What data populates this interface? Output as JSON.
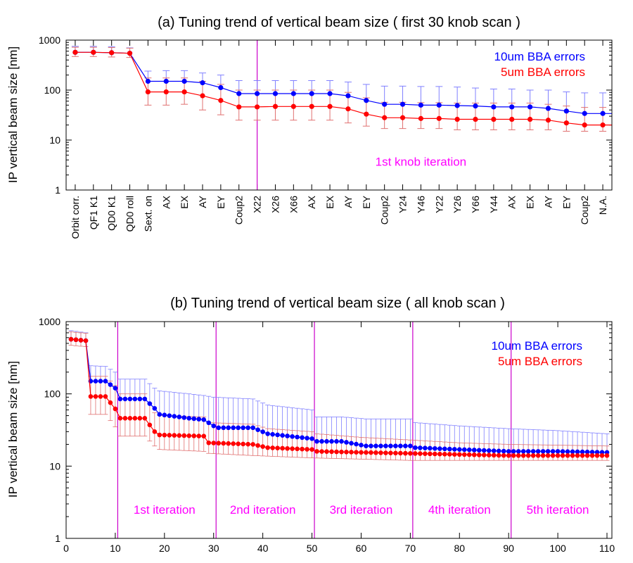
{
  "chart_data": [
    {
      "type": "line",
      "title": "(a) Tuning trend of vertical beam size ( first 30 knob scan )",
      "xlabel": "",
      "ylabel": "IP vertical beam size [nm]",
      "yscale": "log",
      "ylim": [
        1,
        1000
      ],
      "yticks": [
        "1",
        "10",
        "100",
        "1000"
      ],
      "categories": [
        "Orbit corr.",
        "QF1 K1",
        "QD0 K1",
        "QD0 roll",
        "Sext. on",
        "AX",
        "EX",
        "AY",
        "EY",
        "Coup2",
        "X22",
        "X26",
        "X66",
        "AX",
        "EX",
        "AY",
        "EY",
        "Coup2",
        "Y24",
        "Y46",
        "Y22",
        "Y26",
        "Y66",
        "Y44",
        "AX",
        "EX",
        "AY",
        "EY",
        "Coup2",
        "N.A."
      ],
      "series": [
        {
          "name": "10um BBA errors",
          "color": "#0000ff",
          "values": [
            570,
            570,
            560,
            545,
            150,
            150,
            150,
            140,
            112,
            85,
            85,
            85,
            85,
            85,
            85,
            77,
            62,
            52,
            52,
            50,
            50,
            49,
            48,
            46,
            46,
            46,
            43,
            38,
            34,
            34
          ],
          "err_high": [
            750,
            750,
            740,
            700,
            240,
            245,
            245,
            220,
            200,
            155,
            155,
            155,
            155,
            155,
            155,
            145,
            130,
            120,
            120,
            118,
            118,
            115,
            110,
            105,
            105,
            100,
            100,
            92,
            88,
            88
          ]
        },
        {
          "name": "5um BBA errors",
          "color": "#ff0000",
          "values": [
            570,
            570,
            560,
            545,
            92,
            92,
            92,
            77,
            62,
            46,
            46,
            47,
            47,
            47,
            47,
            42,
            33,
            28,
            28,
            27,
            27,
            26,
            26,
            26,
            26,
            26,
            25,
            22,
            20,
            20
          ],
          "err_low": [
            470,
            470,
            460,
            450,
            50,
            50,
            52,
            40,
            32,
            25,
            25,
            25,
            25,
            25,
            25,
            22,
            19,
            17,
            17,
            17,
            17,
            16,
            16,
            16,
            16,
            16,
            16,
            15,
            15,
            15
          ],
          "err_high": [
            720,
            720,
            710,
            690,
            175,
            175,
            175,
            150,
            130,
            100,
            100,
            100,
            100,
            100,
            100,
            90,
            70,
            57,
            57,
            56,
            56,
            55,
            55,
            55,
            55,
            55,
            52,
            48,
            45,
            45
          ]
        }
      ],
      "marker_lines": [
        10.5
      ],
      "annotations": [
        {
          "text": "1st knob iteration",
          "x": 19.5,
          "y": 3.7,
          "color": "#ff00ff"
        }
      ],
      "legend_position": "top-right"
    },
    {
      "type": "line",
      "title": "(b) Tuning trend of vertical beam size ( all knob scan )",
      "xlabel": "",
      "ylabel": "IP vertical beam size [nm]",
      "yscale": "log",
      "xlim": [
        0,
        111
      ],
      "ylim": [
        1,
        1000
      ],
      "xticks": [
        "0",
        "10",
        "20",
        "30",
        "40",
        "50",
        "60",
        "70",
        "80",
        "90",
        "100",
        "110"
      ],
      "yticks": [
        "1",
        "10",
        "100",
        "1000"
      ],
      "series": [
        {
          "name": "10um BBA errors",
          "color": "#0000ff",
          "points": [
            [
              1,
              570
            ],
            [
              4,
              545
            ],
            [
              5,
              150
            ],
            [
              8,
              150
            ],
            [
              10,
              120
            ],
            [
              11,
              85
            ],
            [
              16,
              85
            ],
            [
              18,
              63
            ],
            [
              19,
              52
            ],
            [
              25,
              46
            ],
            [
              28,
              44
            ],
            [
              30,
              36
            ],
            [
              31,
              34
            ],
            [
              38,
              34
            ],
            [
              41,
              28
            ],
            [
              50,
              24
            ],
            [
              51,
              22
            ],
            [
              56,
              22
            ],
            [
              61,
              19
            ],
            [
              70,
              19
            ],
            [
              71,
              18
            ],
            [
              80,
              17
            ],
            [
              90,
              16
            ],
            [
              100,
              16
            ],
            [
              110,
              15.5
            ]
          ],
          "band_high": [
            [
              1,
              750
            ],
            [
              4,
              700
            ],
            [
              5,
              245
            ],
            [
              8,
              240
            ],
            [
              10,
              200
            ],
            [
              11,
              160
            ],
            [
              16,
              160
            ],
            [
              18,
              120
            ],
            [
              19,
              110
            ],
            [
              25,
              100
            ],
            [
              28,
              95
            ],
            [
              30,
              90
            ],
            [
              38,
              85
            ],
            [
              41,
              70
            ],
            [
              50,
              60
            ],
            [
              51,
              48
            ],
            [
              56,
              48
            ],
            [
              61,
              45
            ],
            [
              70,
              45
            ],
            [
              71,
              40
            ],
            [
              80,
              36
            ],
            [
              90,
              33
            ],
            [
              100,
              31
            ],
            [
              110,
              28
            ]
          ]
        },
        {
          "name": "5um BBA errors",
          "color": "#ff0000",
          "points": [
            [
              1,
              570
            ],
            [
              4,
              545
            ],
            [
              5,
              92
            ],
            [
              8,
              92
            ],
            [
              10,
              62
            ],
            [
              11,
              46
            ],
            [
              16,
              46
            ],
            [
              18,
              30
            ],
            [
              19,
              27
            ],
            [
              28,
              26
            ],
            [
              29,
              21
            ],
            [
              38,
              20
            ],
            [
              41,
              18
            ],
            [
              50,
              17
            ],
            [
              51,
              16
            ],
            [
              60,
              15.5
            ],
            [
              70,
              15
            ],
            [
              80,
              14.5
            ],
            [
              90,
              14
            ],
            [
              100,
              14
            ],
            [
              110,
              14
            ]
          ],
          "band_low": [
            [
              1,
              470
            ],
            [
              4,
              450
            ],
            [
              5,
              52
            ],
            [
              8,
              52
            ],
            [
              10,
              35
            ],
            [
              11,
              26
            ],
            [
              16,
              26
            ],
            [
              18,
              19
            ],
            [
              19,
              17
            ],
            [
              28,
              16
            ],
            [
              29,
              15
            ],
            [
              38,
              14
            ],
            [
              50,
              13
            ],
            [
              60,
              12.5
            ],
            [
              70,
              12
            ],
            [
              90,
              12
            ],
            [
              110,
              12
            ]
          ],
          "band_high": [
            [
              1,
              720
            ],
            [
              4,
              690
            ],
            [
              5,
              175
            ],
            [
              8,
              175
            ],
            [
              10,
              130
            ],
            [
              11,
              100
            ],
            [
              16,
              100
            ],
            [
              18,
              55
            ],
            [
              19,
              50
            ],
            [
              28,
              48
            ],
            [
              29,
              40
            ],
            [
              38,
              38
            ],
            [
              41,
              33
            ],
            [
              50,
              30
            ],
            [
              51,
              28
            ],
            [
              60,
              25
            ],
            [
              70,
              23
            ],
            [
              80,
              21
            ],
            [
              90,
              20
            ],
            [
              100,
              19.5
            ],
            [
              110,
              19
            ]
          ]
        }
      ],
      "marker_lines": [
        10.5,
        30.5,
        50.5,
        70.5,
        90.5
      ],
      "annotations": [
        {
          "text": "1st iteration",
          "x": 20,
          "y": 2.5,
          "color": "#ff00ff"
        },
        {
          "text": "2nd iteration",
          "x": 40,
          "y": 2.5,
          "color": "#ff00ff"
        },
        {
          "text": "3rd iteration",
          "x": 60,
          "y": 2.5,
          "color": "#ff00ff"
        },
        {
          "text": "4th iteration",
          "x": 80,
          "y": 2.5,
          "color": "#ff00ff"
        },
        {
          "text": "5th iteration",
          "x": 100,
          "y": 2.5,
          "color": "#ff00ff"
        }
      ],
      "legend_position": "top-right"
    }
  ]
}
